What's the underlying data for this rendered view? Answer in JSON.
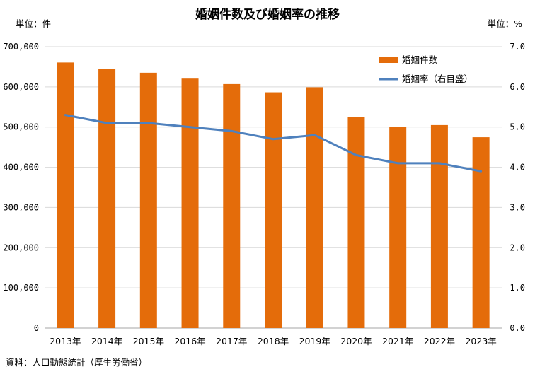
{
  "colors": {
    "bar": "#E46C0A",
    "line": "#4F81BD",
    "grid": "#D9D9D9",
    "axis": "#A6A6A6"
  },
  "chart_data": {
    "type": "bar",
    "title": "婚姻件数及び婚姻率の推移",
    "left_unit_label": "単位：件",
    "right_unit_label": "単位：%",
    "source": "資料：人口動態統計（厚生労働省）",
    "categories": [
      "2013年",
      "2014年",
      "2015年",
      "2016年",
      "2017年",
      "2018年",
      "2019年",
      "2020年",
      "2021年",
      "2022年",
      "2023年"
    ],
    "series": [
      {
        "name": "婚姻件数",
        "type": "bar",
        "axis": "left",
        "values": [
          660613,
          643749,
          635156,
          620531,
          606952,
          586481,
          599007,
          525507,
          501138,
          504930,
          474717
        ]
      },
      {
        "name": "婚姻率（右目盛）",
        "type": "line",
        "axis": "right",
        "values": [
          5.3,
          5.1,
          5.1,
          5.0,
          4.9,
          4.7,
          4.8,
          4.3,
          4.1,
          4.1,
          3.9
        ]
      }
    ],
    "left_axis": {
      "ylim": [
        0,
        700000
      ],
      "ticks": [
        0,
        100000,
        200000,
        300000,
        400000,
        500000,
        600000,
        700000
      ],
      "tick_labels": [
        "0",
        "100,000",
        "200,000",
        "300,000",
        "400,000",
        "500,000",
        "600,000",
        "700,000"
      ]
    },
    "right_axis": {
      "ylim": [
        0,
        7.0
      ],
      "ticks": [
        0,
        1,
        2,
        3,
        4,
        5,
        6,
        7
      ],
      "tick_labels": [
        "0.0",
        "1.0",
        "2.0",
        "3.0",
        "4.0",
        "5.0",
        "6.0",
        "7.0"
      ]
    },
    "grid": true,
    "legend_position": "top-right"
  }
}
